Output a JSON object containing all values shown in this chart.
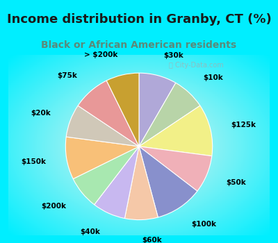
{
  "title": "Income distribution in Granby, CT (%)",
  "subtitle": "Black or African American residents",
  "title_color": "#1a1a1a",
  "subtitle_color": "#5a8a7a",
  "title_fontsize": 13,
  "subtitle_fontsize": 10,
  "bg_cyan": "#00eeff",
  "bg_chart_inner": "#e8f5ee",
  "watermark": "City-Data.com",
  "slices": [
    {
      "label": "$30k",
      "value": 8,
      "color": "#b0a8d8"
    },
    {
      "label": "$10k",
      "value": 7,
      "color": "#b8d4a8"
    },
    {
      "label": "$125k",
      "value": 11,
      "color": "#f2f088"
    },
    {
      "label": "$50k",
      "value": 8,
      "color": "#f0b0b8"
    },
    {
      "label": "$100k",
      "value": 10,
      "color": "#8890cc"
    },
    {
      "label": "$60k",
      "value": 7,
      "color": "#f5c8a8"
    },
    {
      "label": "$40k",
      "value": 7,
      "color": "#c8b8f0"
    },
    {
      "label": "$200k",
      "value": 7,
      "color": "#a8e8b0"
    },
    {
      "label": "$150k",
      "value": 9,
      "color": "#f8c078"
    },
    {
      "label": "$20k",
      "value": 7,
      "color": "#d0c8b8"
    },
    {
      "label": "$75k",
      "value": 8,
      "color": "#e89898"
    },
    {
      "label": "> $200k",
      "value": 7,
      "color": "#c8a030"
    }
  ]
}
